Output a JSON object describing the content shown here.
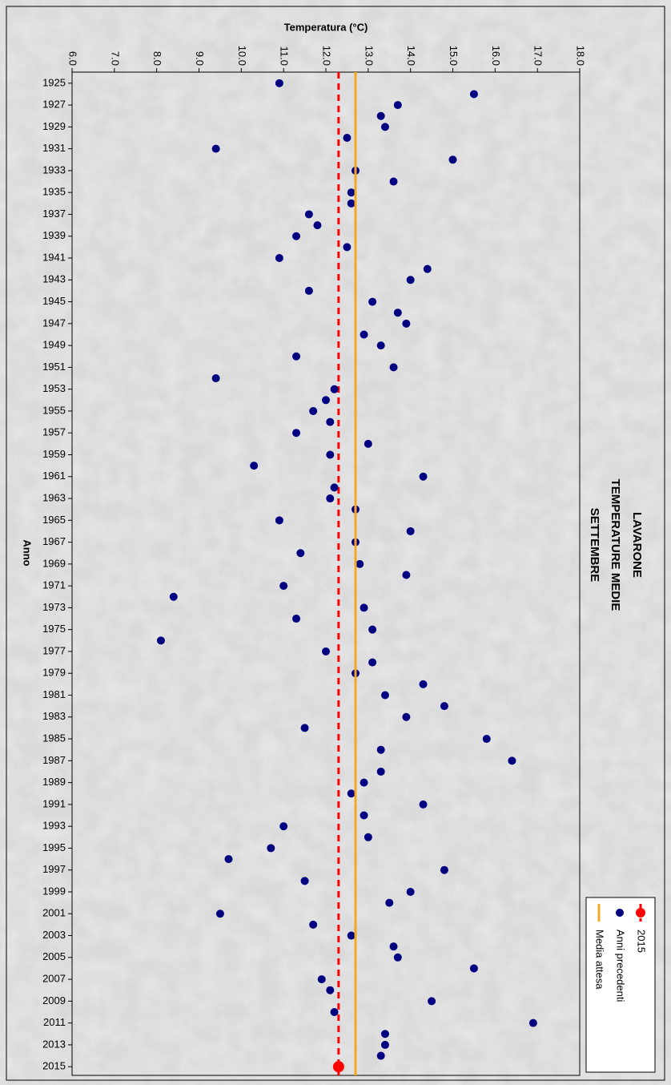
{
  "chart_data": {
    "type": "scatter",
    "title": [
      "LAVARONE",
      "TEMPERATURE MEDIE",
      "SETTEMBRE"
    ],
    "y_label": "Temperatura (°C)",
    "x_label": "Anno",
    "categories": [
      "1925",
      null,
      "1927",
      null,
      "1929",
      null,
      "1931",
      null,
      "1933",
      null,
      "1935",
      null,
      "1937",
      null,
      "1939",
      null,
      "1941",
      null,
      "1943",
      null,
      "1945",
      null,
      "1947",
      null,
      "1949",
      null,
      "1951",
      null,
      "1953",
      null,
      "1955",
      null,
      "1957",
      null,
      "1959",
      null,
      "1961",
      null,
      "1963",
      null,
      "1965",
      null,
      "1967",
      null,
      "1969",
      null,
      "1971",
      null,
      "1973",
      null,
      "1975",
      null,
      "1977",
      null,
      "1979",
      null,
      "1981",
      null,
      "1983",
      null,
      "1985",
      null,
      "1987",
      null,
      "1989",
      null,
      "1991",
      null,
      "1993",
      null,
      "1995",
      null,
      "1997",
      null,
      "1999",
      null,
      "2001",
      null,
      "2003",
      null,
      "2005",
      null,
      "2007",
      null,
      "2009",
      null,
      "2011",
      null,
      "2013",
      null,
      "2015"
    ],
    "series": [
      {
        "name": "2015",
        "color": "#ff0000",
        "style": "point-and-dashed-line",
        "values": [
          null,
          null,
          null,
          null,
          null,
          null,
          null,
          null,
          null,
          null,
          null,
          null,
          null,
          null,
          null,
          null,
          null,
          null,
          null,
          null,
          null,
          null,
          null,
          null,
          null,
          null,
          null,
          null,
          null,
          null,
          null,
          null,
          null,
          null,
          null,
          null,
          null,
          null,
          null,
          null,
          null,
          null,
          null,
          null,
          null,
          null,
          null,
          null,
          null,
          null,
          null,
          null,
          null,
          null,
          null,
          null,
          null,
          null,
          null,
          null,
          null,
          null,
          null,
          null,
          null,
          null,
          null,
          null,
          null,
          null,
          null,
          null,
          null,
          null,
          null,
          null,
          null,
          null,
          null,
          null,
          null,
          null,
          null,
          null,
          null,
          null,
          null,
          null,
          null,
          null,
          12.3
        ]
      },
      {
        "name": "Anni precedenti",
        "color": "#000080",
        "style": "points",
        "values": [
          10.9,
          15.5,
          13.7,
          13.3,
          13.4,
          12.5,
          9.4,
          15.0,
          12.7,
          13.6,
          12.6,
          12.6,
          11.6,
          11.8,
          11.3,
          12.5,
          10.9,
          14.4,
          14.0,
          11.6,
          13.1,
          13.7,
          13.9,
          12.9,
          13.3,
          11.3,
          13.6,
          9.4,
          12.2,
          12.0,
          11.7,
          12.1,
          11.3,
          13.0,
          12.1,
          10.3,
          14.3,
          12.2,
          12.1,
          12.7,
          10.9,
          14.0,
          12.7,
          11.4,
          12.8,
          13.9,
          11.0,
          8.4,
          12.9,
          11.3,
          13.1,
          8.1,
          12.0,
          13.1,
          12.7,
          14.3,
          13.4,
          14.8,
          13.9,
          11.5,
          15.8,
          13.3,
          16.4,
          13.3,
          12.9,
          12.6,
          14.3,
          12.9,
          11.0,
          13.0,
          10.7,
          9.7,
          14.8,
          11.5,
          14.0,
          13.5,
          9.5,
          11.7,
          12.6,
          13.6,
          13.7,
          15.5,
          11.9,
          12.1,
          14.5,
          12.2,
          16.9,
          13.4,
          13.4,
          13.3,
          null
        ]
      },
      {
        "name": "Media attesa",
        "color": "#f5a623",
        "style": "reference-line",
        "value": 12.7
      }
    ],
    "ylim": [
      6,
      18
    ],
    "yticks": [
      {
        "value": 6,
        "label": "6.0"
      },
      {
        "value": 7,
        "label": "7.0"
      },
      {
        "value": 8,
        "label": "8.0"
      },
      {
        "value": 9,
        "label": "9.0"
      },
      {
        "value": 10,
        "label": "10.0"
      },
      {
        "value": 11,
        "label": "11.0"
      },
      {
        "value": 12,
        "label": "12.0"
      },
      {
        "value": 13,
        "label": "13.0"
      },
      {
        "value": 14,
        "label": "14.0"
      },
      {
        "value": 15,
        "label": "15.0"
      },
      {
        "value": 16,
        "label": "16.0"
      },
      {
        "value": 17,
        "label": "17.0"
      },
      {
        "value": 18,
        "label": "18.0"
      }
    ],
    "grid": false,
    "legend": "top-right"
  }
}
